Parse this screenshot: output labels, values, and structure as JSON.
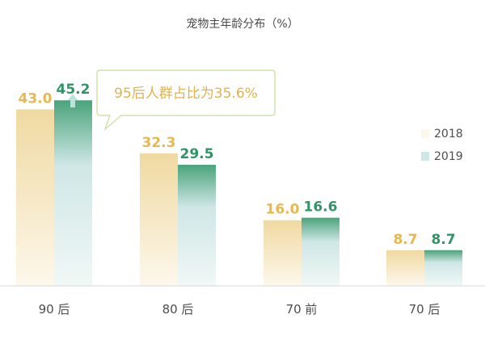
{
  "chart_data": {
    "type": "bar",
    "title": "宠物主年龄分布（%）",
    "categories": [
      "90 后",
      "80 后",
      "70 前",
      "70 后"
    ],
    "series": [
      {
        "name": "2018",
        "values": [
          43.0,
          32.3,
          16.0,
          8.7
        ]
      },
      {
        "name": "2019",
        "values": [
          45.2,
          29.5,
          16.6,
          8.7
        ]
      }
    ],
    "value_labels": [
      [
        "43.0",
        "32.3",
        "16.0",
        "8.7"
      ],
      [
        "45.2",
        "29.5",
        "16.6",
        "8.7"
      ]
    ],
    "ylim": [
      0,
      48
    ],
    "xlabel": "",
    "ylabel": "",
    "grid": false,
    "legend_position": "right",
    "callout": "95后人群占比为35.6%",
    "colors": {
      "s2018_top": "#f0d9a2",
      "s2018_bottom": "#fdf8ec",
      "s2018_label": "#e5b851",
      "s2019_top": "#4aa37b",
      "s2019_mid": "#cfe7e6",
      "s2019_bottom": "#f1f8f6",
      "s2019_label": "#2f9566",
      "callout_text": "#e3b24e",
      "callout_border": "#cfe2a6",
      "arrow": "#bfe1dc",
      "axis": "#d9d9d9",
      "tick_text": "#4d4d4d",
      "title_text": "#4a4a4a"
    }
  }
}
